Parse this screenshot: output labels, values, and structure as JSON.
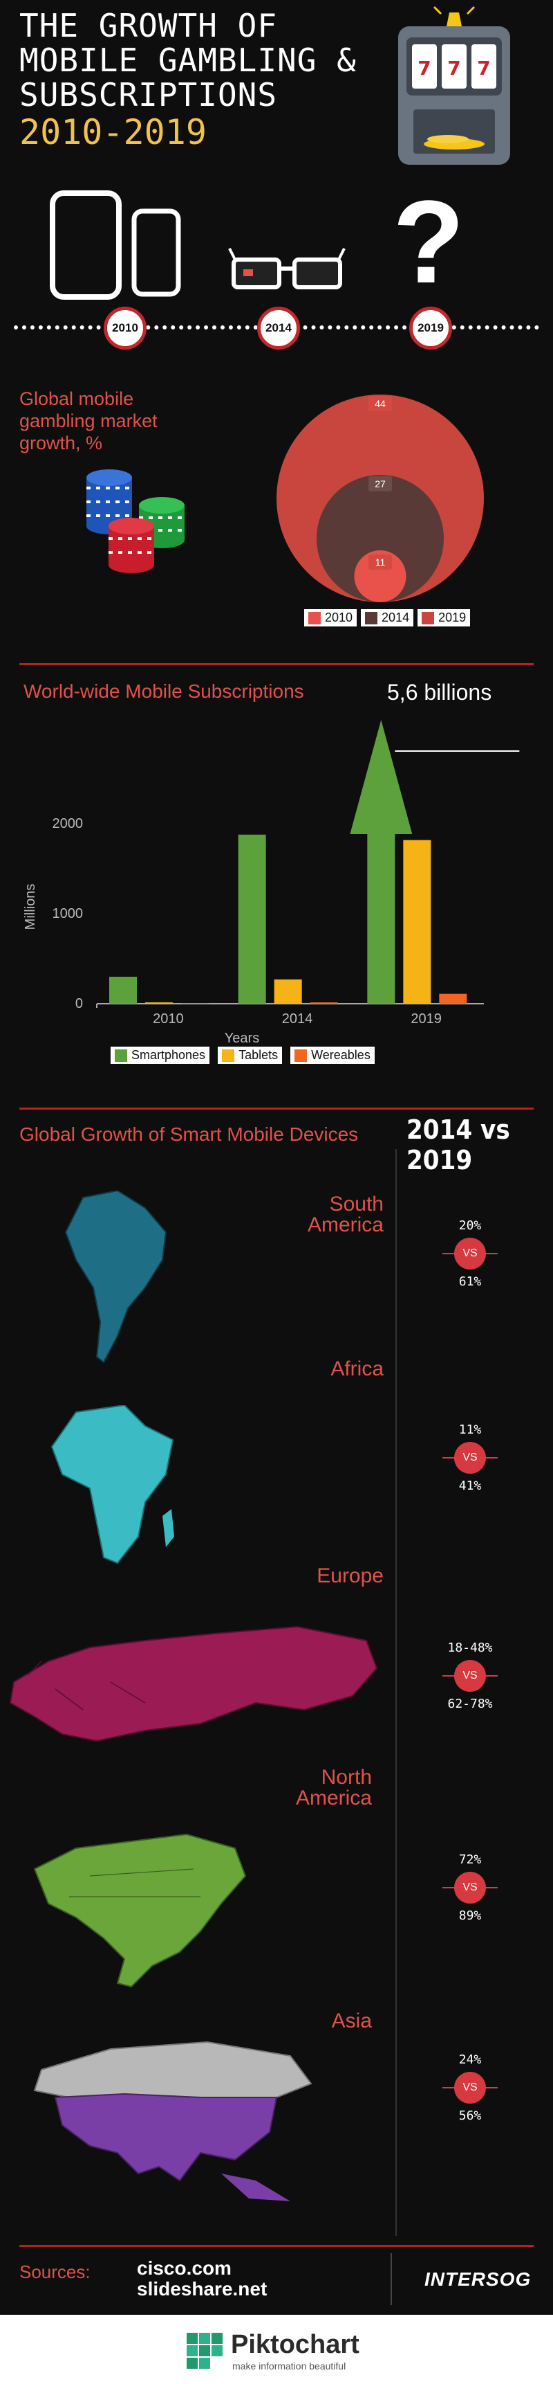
{
  "header": {
    "title_lines": [
      "THE GROWTH OF",
      "MOBILE GAMBLING &",
      "SUBSCRIPTIONS"
    ],
    "years": "2010-2019",
    "slot_digits": "777"
  },
  "timeline": {
    "milestones": [
      "2010",
      "2014",
      "2019"
    ],
    "question_mark": "?"
  },
  "gambling": {
    "title": "Global mobile gambling market growth, %",
    "chart_data": {
      "type": "bubble",
      "categories": [
        "2010",
        "2014",
        "2019"
      ],
      "values": [
        11,
        27,
        44
      ],
      "colors": [
        "#e8524a",
        "#5a3a36",
        "#c9463e"
      ]
    },
    "legend": [
      "2010",
      "2014",
      "2019"
    ]
  },
  "subscriptions": {
    "title": "World-wide Mobile Subscriptions",
    "callout": "5,6 billions",
    "chart_data": {
      "type": "bar",
      "categories": [
        "2010",
        "2014",
        "2019"
      ],
      "series": [
        {
          "name": "Smartphones",
          "values": [
            300,
            1880,
            2100
          ],
          "color": "#5ca13b"
        },
        {
          "name": "Tablets",
          "values": [
            15,
            270,
            1820
          ],
          "color": "#f5b316"
        },
        {
          "name": "Wereables",
          "values": [
            5,
            15,
            110
          ],
          "color": "#f26522"
        }
      ],
      "ylim": [
        0,
        2500
      ],
      "yticks": [
        "0",
        "1000",
        "2000"
      ],
      "xlabel": "Years",
      "ylabel": "Millions"
    }
  },
  "devices": {
    "title": "Global Growth of Smart Mobile Devices",
    "comparison_heading": "2014 vs 2019",
    "vs_label": "VS",
    "regions": [
      {
        "name": [
          "South",
          "America"
        ],
        "p2014": "20%",
        "p2019": "61%",
        "color": "#1e6f85"
      },
      {
        "name": [
          "Africa"
        ],
        "p2014": "11%",
        "p2019": "41%",
        "color": "#3bbcc4"
      },
      {
        "name": [
          "Europe"
        ],
        "p2014": "18-48%",
        "p2019": "62-78%",
        "color": "#9b1b55"
      },
      {
        "name": [
          "North",
          "America"
        ],
        "p2014": "72%",
        "p2019": "89%",
        "color": "#6aa63a"
      },
      {
        "name": [
          "Asia"
        ],
        "p2014": "24%",
        "p2019": "56%",
        "color": "#7a3fa6"
      }
    ]
  },
  "footer": {
    "sources_label": "Sources:",
    "sources": [
      "cisco.com",
      "slideshare.net"
    ],
    "brand": "INTERSOG",
    "piktochart_name": "Piktochart",
    "piktochart_tagline": "make information beautiful"
  }
}
